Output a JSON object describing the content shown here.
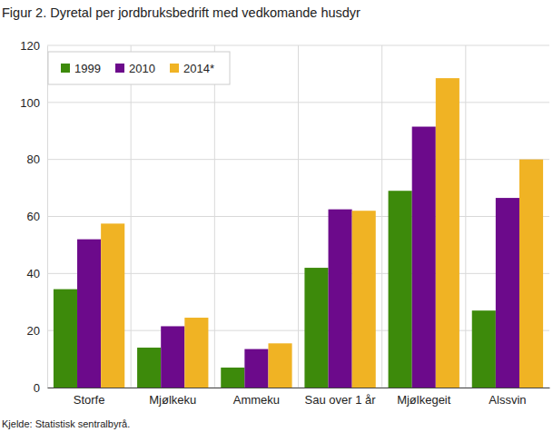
{
  "chart_data": {
    "type": "bar",
    "title": "Figur 2. Dyretal per jordbruksbedrift med vedkomande husdyr",
    "source": "Kjelde: Statistisk sentralbyrå.",
    "categories": [
      "Storfe",
      "Mjølkeku",
      "Ammeku",
      "Sau over 1 år",
      "Mjølkegeit",
      "Alssvin"
    ],
    "series": [
      {
        "name": "1999",
        "color": "#3d8a0b",
        "values": [
          34.5,
          14,
          7,
          42,
          69,
          27
        ]
      },
      {
        "name": "2010",
        "color": "#6c0a8b",
        "values": [
          52,
          21.5,
          13.5,
          62.5,
          91.5,
          66.5
        ]
      },
      {
        "name": "2014*",
        "color": "#f0b324",
        "values": [
          57.5,
          24.5,
          15.5,
          62,
          108.5,
          80
        ]
      }
    ],
    "ylim": [
      0,
      120
    ],
    "yticks": [
      0,
      20,
      40,
      60,
      80,
      100,
      120
    ],
    "grid": true,
    "legend": "top-left"
  }
}
